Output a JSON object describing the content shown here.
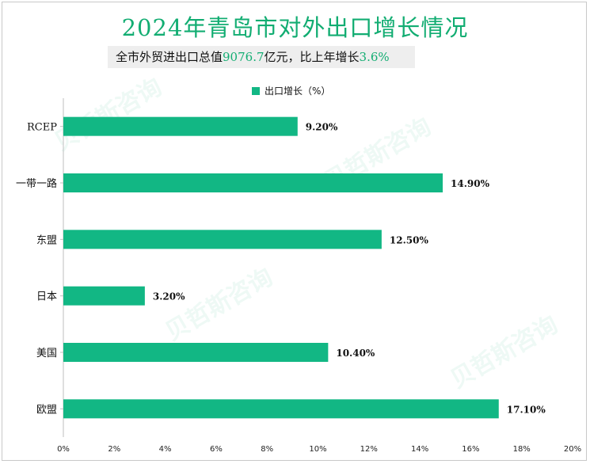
{
  "title": "2024年青岛市对外出口增长情况",
  "subtitle": {
    "prefix": "全市外贸进出口总值",
    "value": "9076.7",
    "middle": "亿元，比上年增长",
    "growth": "3.6%"
  },
  "colors": {
    "bar": "#12b784",
    "title": "#12ad72"
  },
  "chart_data": {
    "type": "bar",
    "orientation": "horizontal",
    "categories": [
      "RCEP",
      "一带一路",
      "东盟",
      "日本",
      "美国",
      "欧盟"
    ],
    "series": [
      {
        "name": "出口增长（%）",
        "values": [
          9.2,
          14.9,
          12.5,
          3.2,
          10.4,
          17.1
        ]
      }
    ],
    "data_labels": [
      "9.20%",
      "14.90%",
      "12.50%",
      "3.20%",
      "10.40%",
      "17.10%"
    ],
    "xlim": [
      0,
      20
    ],
    "xticks": [
      "0%",
      "2%",
      "4%",
      "6%",
      "8%",
      "10%",
      "12%",
      "14%",
      "16%",
      "18%",
      "20%"
    ],
    "legend_position": "top",
    "grid": false
  }
}
